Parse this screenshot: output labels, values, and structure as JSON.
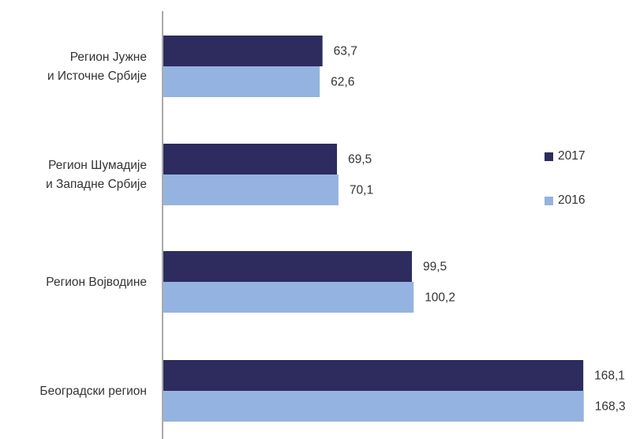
{
  "chart_data": {
    "type": "bar",
    "orientation": "horizontal",
    "title": "",
    "xlabel": "",
    "ylabel": "",
    "categories": [
      [
        "Регион Јужне",
        "и Источне Србије"
      ],
      [
        "Регион Шумадије",
        "и Западне Србије"
      ],
      [
        "Регион Војводине"
      ],
      [
        "Београдски регион"
      ]
    ],
    "series": [
      {
        "name": "2017",
        "color": "#2e2b5f",
        "values": [
          63.7,
          69.5,
          99.5,
          168.1
        ],
        "labels": [
          "63,7",
          "69,5",
          "99,5",
          "168,1"
        ]
      },
      {
        "name": "2016",
        "color": "#95b3e0",
        "values": [
          62.6,
          70.1,
          100.2,
          168.3
        ],
        "labels": [
          "62,6",
          "70,1",
          "100,2",
          "168,3"
        ]
      }
    ],
    "xlim": [
      0,
      169
    ],
    "grid": false,
    "legend": "right"
  }
}
